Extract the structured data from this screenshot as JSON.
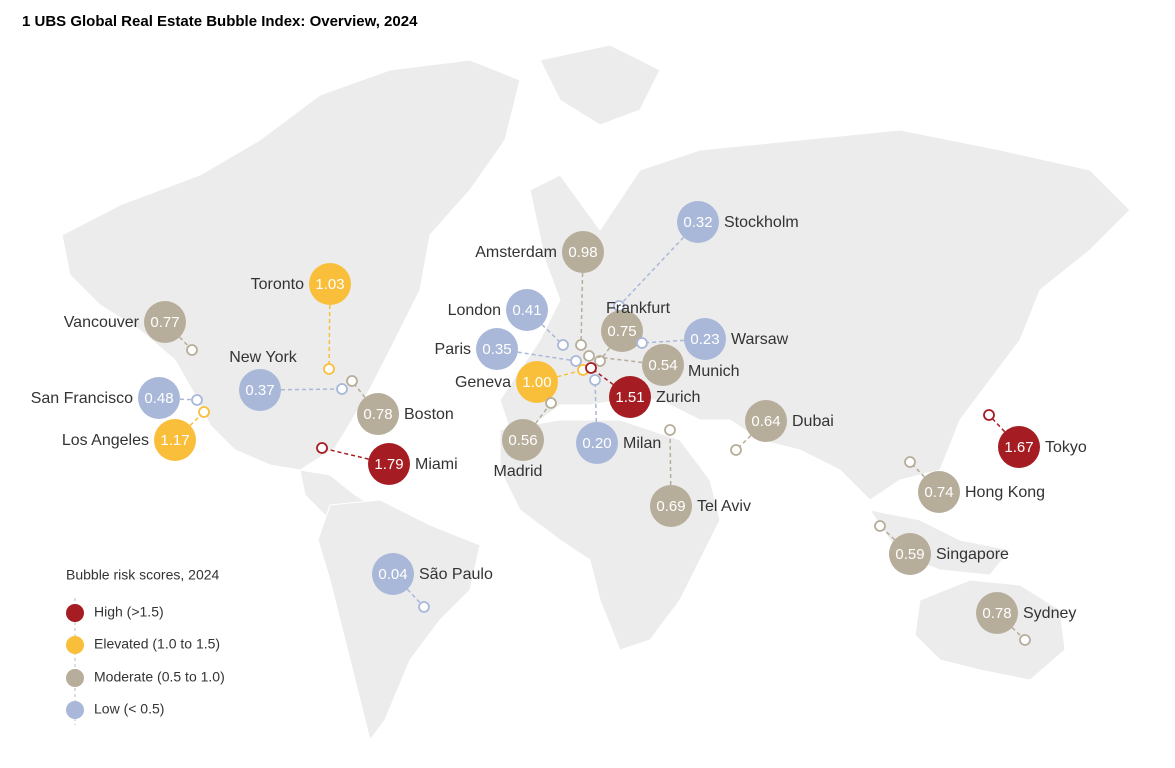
{
  "title": "1 UBS Global Real Estate Bubble Index: Overview, 2024",
  "legend": {
    "title": "Bubble risk scores, 2024",
    "items": [
      {
        "label": "High (>1.5)",
        "color": "#a51d22"
      },
      {
        "label": "Elevated (1.0 to 1.5)",
        "color": "#f9bf3b"
      },
      {
        "label": "Moderate (0.5 to 1.0)",
        "color": "#b7ad9b"
      },
      {
        "label": "Low (< 0.5)",
        "color": "#a9b8d9"
      }
    ]
  },
  "cities": [
    {
      "name": "Vancouver",
      "score": "0.77",
      "color": "#b7ad9b"
    },
    {
      "name": "Toronto",
      "score": "1.03",
      "color": "#f9bf3b"
    },
    {
      "name": "New York",
      "score": "0.37",
      "color": "#a9b8d9"
    },
    {
      "name": "Boston",
      "score": "0.78",
      "color": "#b7ad9b"
    },
    {
      "name": "San Francisco",
      "score": "0.48",
      "color": "#a9b8d9"
    },
    {
      "name": "Los Angeles",
      "score": "1.17",
      "color": "#f9bf3b"
    },
    {
      "name": "Miami",
      "score": "1.79",
      "color": "#a51d22"
    },
    {
      "name": "São Paulo",
      "score": "0.04",
      "color": "#a9b8d9"
    },
    {
      "name": "Amsterdam",
      "score": "0.98",
      "color": "#b7ad9b"
    },
    {
      "name": "Stockholm",
      "score": "0.32",
      "color": "#a9b8d9"
    },
    {
      "name": "London",
      "score": "0.41",
      "color": "#a9b8d9"
    },
    {
      "name": "Frankfurt",
      "score": "0.75",
      "color": "#b7ad9b"
    },
    {
      "name": "Warsaw",
      "score": "0.23",
      "color": "#a9b8d9"
    },
    {
      "name": "Paris",
      "score": "0.35",
      "color": "#a9b8d9"
    },
    {
      "name": "Munich",
      "score": "0.54",
      "color": "#b7ad9b"
    },
    {
      "name": "Geneva",
      "score": "1.00",
      "color": "#f9bf3b"
    },
    {
      "name": "Zurich",
      "score": "1.51",
      "color": "#a51d22"
    },
    {
      "name": "Madrid",
      "score": "0.56",
      "color": "#b7ad9b"
    },
    {
      "name": "Milan",
      "score": "0.20",
      "color": "#a9b8d9"
    },
    {
      "name": "Tel Aviv",
      "score": "0.69",
      "color": "#b7ad9b"
    },
    {
      "name": "Dubai",
      "score": "0.64",
      "color": "#b7ad9b"
    },
    {
      "name": "Tokyo",
      "score": "1.67",
      "color": "#a51d22"
    },
    {
      "name": "Hong Kong",
      "score": "0.74",
      "color": "#b7ad9b"
    },
    {
      "name": "Singapore",
      "score": "0.59",
      "color": "#b7ad9b"
    },
    {
      "name": "Sydney",
      "score": "0.78",
      "color": "#b7ad9b"
    }
  ]
}
